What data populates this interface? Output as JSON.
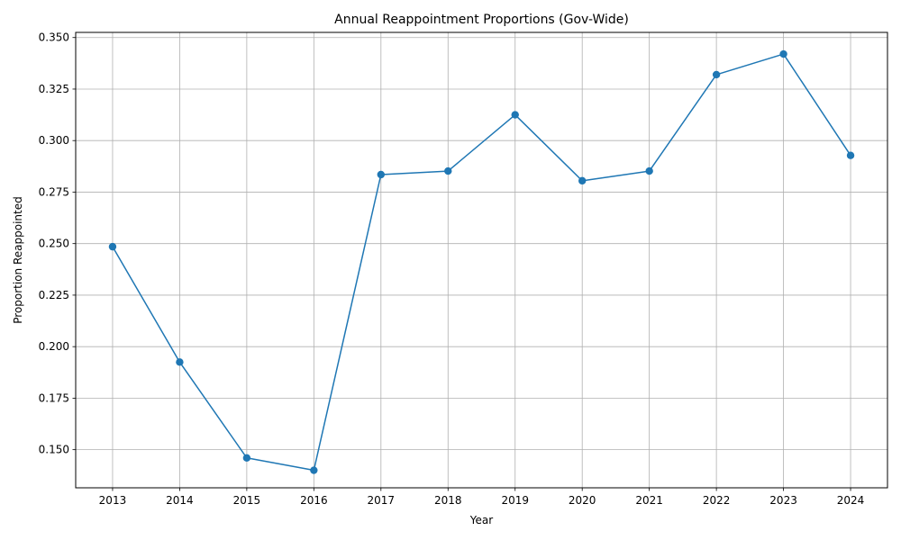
{
  "chart_data": {
    "type": "line",
    "title": "Annual Reappointment Proportions (Gov-Wide)",
    "xlabel": "Year",
    "ylabel": "Proportion Reappointed",
    "x": [
      2013,
      2014,
      2015,
      2016,
      2017,
      2018,
      2019,
      2020,
      2021,
      2022,
      2023,
      2024
    ],
    "x_tick_labels": [
      "2013",
      "2014",
      "2015",
      "2016",
      "2017",
      "2018",
      "2019",
      "2020",
      "2021",
      "2022",
      "2023",
      "2024"
    ],
    "y_ticks": [
      0.15,
      0.175,
      0.2,
      0.225,
      0.25,
      0.275,
      0.3,
      0.325,
      0.35
    ],
    "y_tick_labels": [
      "0.150",
      "0.175",
      "0.200",
      "0.225",
      "0.250",
      "0.275",
      "0.300",
      "0.325",
      "0.350"
    ],
    "ylim": [
      0.1315,
      0.3525
    ],
    "xlim": [
      2012.45,
      2024.55
    ],
    "grid": true,
    "series": [
      {
        "values": [
          0.2485,
          0.1925,
          0.146,
          0.14,
          0.2835,
          0.2852,
          0.3125,
          0.2805,
          0.2852,
          0.332,
          0.342,
          0.2928
        ],
        "color": "#1f77b4",
        "marker": "circle"
      }
    ]
  }
}
